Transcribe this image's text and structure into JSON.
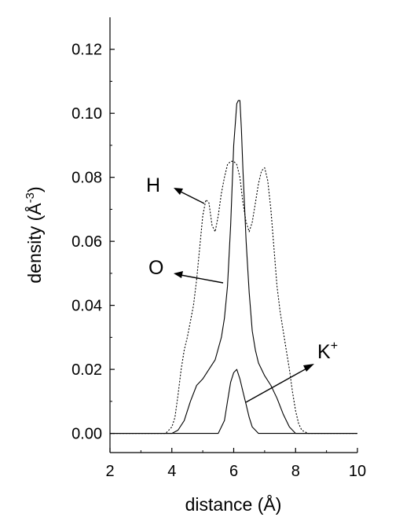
{
  "chart_data": {
    "type": "line",
    "xlabel": "distance (Å)",
    "ylabel": "density (Å",
    "ylabel_sup": "-3",
    "ylabel_close": ")",
    "xlim": [
      2,
      10
    ],
    "ylim": [
      -0.006,
      0.13
    ],
    "xticks": [
      2,
      4,
      6,
      8,
      10
    ],
    "yticks": [
      0.0,
      0.02,
      0.04,
      0.06,
      0.08,
      0.1,
      0.12
    ],
    "ytick_labels": [
      "0.00",
      "0.02",
      "0.04",
      "0.06",
      "0.08",
      "0.10",
      "0.12"
    ],
    "grid": false,
    "series": [
      {
        "style": "dotted",
        "color": "#000000",
        "x": [
          2.0,
          3.5,
          3.8,
          4.0,
          4.1,
          4.2,
          4.3,
          4.4,
          4.5,
          4.6,
          4.7,
          4.8,
          4.9,
          5.0,
          5.1,
          5.2,
          5.3,
          5.4,
          5.5,
          5.6,
          5.7,
          5.8,
          5.9,
          6.0,
          6.1,
          6.2,
          6.3,
          6.4,
          6.5,
          6.6,
          6.7,
          6.8,
          6.9,
          7.0,
          7.1,
          7.2,
          7.3,
          7.4,
          7.5,
          7.6,
          7.7,
          7.8,
          7.9,
          8.0,
          8.1,
          8.2,
          8.4,
          8.6,
          10.0
        ],
        "values": [
          0.0,
          0.0,
          0.0,
          0.002,
          0.005,
          0.012,
          0.02,
          0.026,
          0.03,
          0.035,
          0.04,
          0.048,
          0.058,
          0.068,
          0.073,
          0.072,
          0.065,
          0.063,
          0.068,
          0.075,
          0.08,
          0.084,
          0.085,
          0.085,
          0.084,
          0.08,
          0.072,
          0.066,
          0.063,
          0.066,
          0.072,
          0.078,
          0.082,
          0.083,
          0.079,
          0.07,
          0.058,
          0.046,
          0.038,
          0.032,
          0.026,
          0.02,
          0.013,
          0.007,
          0.003,
          0.001,
          0.0,
          0.0,
          0.0
        ]
      },
      {
        "style": "solid",
        "color": "#000000",
        "x": [
          2.0,
          4.0,
          4.2,
          4.4,
          4.6,
          4.8,
          5.0,
          5.2,
          5.4,
          5.6,
          5.7,
          5.8,
          5.9,
          6.0,
          6.1,
          6.15,
          6.2,
          6.25,
          6.3,
          6.4,
          6.5,
          6.6,
          6.7,
          6.8,
          7.0,
          7.2,
          7.4,
          7.6,
          7.8,
          8.0,
          8.2,
          10.0
        ],
        "values": [
          0.0,
          0.0,
          0.001,
          0.004,
          0.01,
          0.015,
          0.017,
          0.02,
          0.023,
          0.03,
          0.036,
          0.046,
          0.065,
          0.09,
          0.103,
          0.104,
          0.104,
          0.095,
          0.082,
          0.06,
          0.044,
          0.032,
          0.026,
          0.022,
          0.018,
          0.015,
          0.011,
          0.006,
          0.002,
          0.0,
          0.0,
          0.0
        ]
      },
      {
        "style": "solid",
        "color": "#000000",
        "x": [
          2.0,
          5.3,
          5.5,
          5.7,
          5.8,
          5.9,
          6.0,
          6.1,
          6.2,
          6.3,
          6.4,
          6.5,
          6.6,
          6.7,
          6.8,
          7.0,
          10.0
        ],
        "values": [
          0.0,
          0.0,
          0.0,
          0.004,
          0.01,
          0.016,
          0.019,
          0.02,
          0.017,
          0.013,
          0.009,
          0.005,
          0.002,
          0.001,
          0.0,
          0.0,
          0.0
        ]
      }
    ],
    "annotations": [
      {
        "text": "H",
        "sup": ""
      },
      {
        "text": "O",
        "sup": ""
      },
      {
        "text": "K",
        "sup": "+"
      }
    ]
  }
}
